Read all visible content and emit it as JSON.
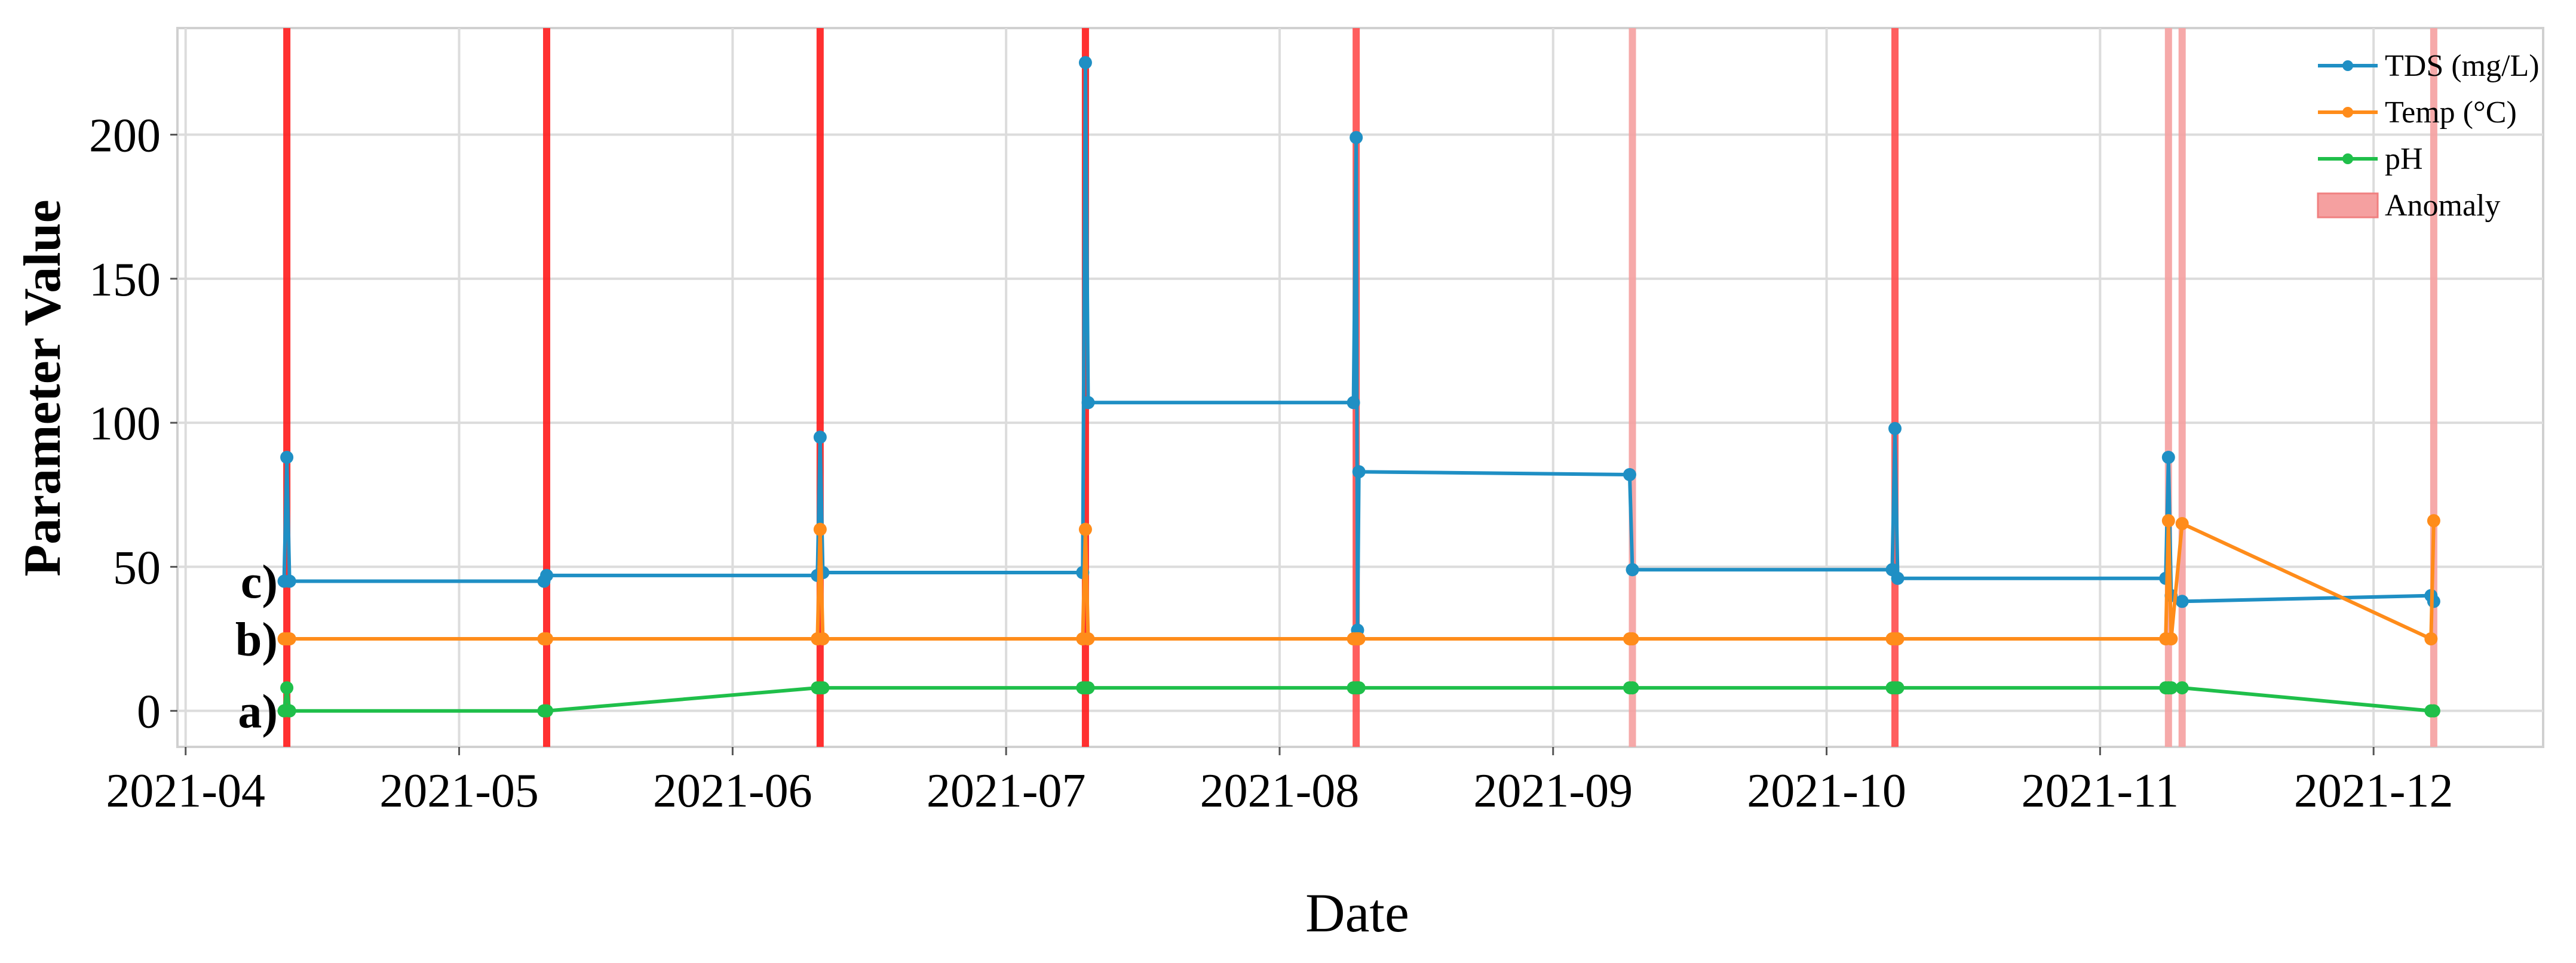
{
  "chart_data": {
    "type": "line",
    "x_label": "Date",
    "y_label": "Parameter Value",
    "x": [
      4.36,
      4.37,
      4.38,
      5.31,
      5.32,
      6.31,
      6.32,
      6.33,
      7.28,
      7.29,
      7.3,
      8.27,
      8.28,
      8.285,
      8.29,
      9.28,
      9.29,
      10.24,
      10.25,
      10.26,
      11.24,
      11.25,
      11.26,
      11.3,
      12.21,
      12.22
    ],
    "series": [
      {
        "name": "TDS (mg/L)",
        "color": "#1f8fc4",
        "values": [
          45,
          88,
          45,
          45,
          47,
          47,
          95,
          48,
          48,
          225,
          107,
          107,
          199,
          28,
          83,
          82,
          49,
          49,
          98,
          46,
          46,
          88,
          40,
          38,
          40,
          38
        ]
      },
      {
        "name": "Temp (°C)",
        "color": "#ff8c1a",
        "values": [
          25,
          25,
          25,
          25,
          25,
          25,
          63,
          25,
          25,
          63,
          25,
          25,
          25,
          25,
          25,
          25,
          25,
          25,
          25,
          25,
          25,
          66,
          25,
          65,
          25,
          66
        ]
      },
      {
        "name": "pH",
        "color": "#1fbf4a",
        "values": [
          0,
          8,
          0,
          0,
          0,
          8,
          8,
          8,
          8,
          8,
          8,
          8,
          8,
          8,
          8,
          8,
          8,
          8,
          8,
          8,
          8,
          8,
          8,
          8,
          0,
          0
        ]
      }
    ],
    "anomaly_label": "Anomaly",
    "anomalies": [
      4.37,
      5.32,
      6.32,
      7.29,
      8.28,
      9.29,
      10.25,
      11.25,
      11.3,
      12.22
    ],
    "anomaly_colors": [
      "#ff1a1a",
      "#ff1a1a",
      "#ff1a1a",
      "#ff1a1a",
      "#ff4d4d",
      "#f5a0a0",
      "#ff4d4d",
      "#f5a0a0",
      "#f5a0a0",
      "#f5a0a0"
    ],
    "annotations": [
      "a)",
      "b)",
      "c)"
    ],
    "xlim": [
      3.97,
      12.62
    ],
    "ylim": [
      -12.5,
      237
    ],
    "xticks": [
      {
        "value": 4,
        "label": "2021-04"
      },
      {
        "value": 5,
        "label": "2021-05"
      },
      {
        "value": 6,
        "label": "2021-06"
      },
      {
        "value": 7,
        "label": "2021-07"
      },
      {
        "value": 8,
        "label": "2021-08"
      },
      {
        "value": 9,
        "label": "2021-09"
      },
      {
        "value": 10,
        "label": "2021-10"
      },
      {
        "value": 11,
        "label": "2021-11"
      },
      {
        "value": 12,
        "label": "2021-12"
      }
    ],
    "yticks": [
      0,
      50,
      100,
      150,
      200
    ],
    "grid": true,
    "legend": "upper right"
  }
}
